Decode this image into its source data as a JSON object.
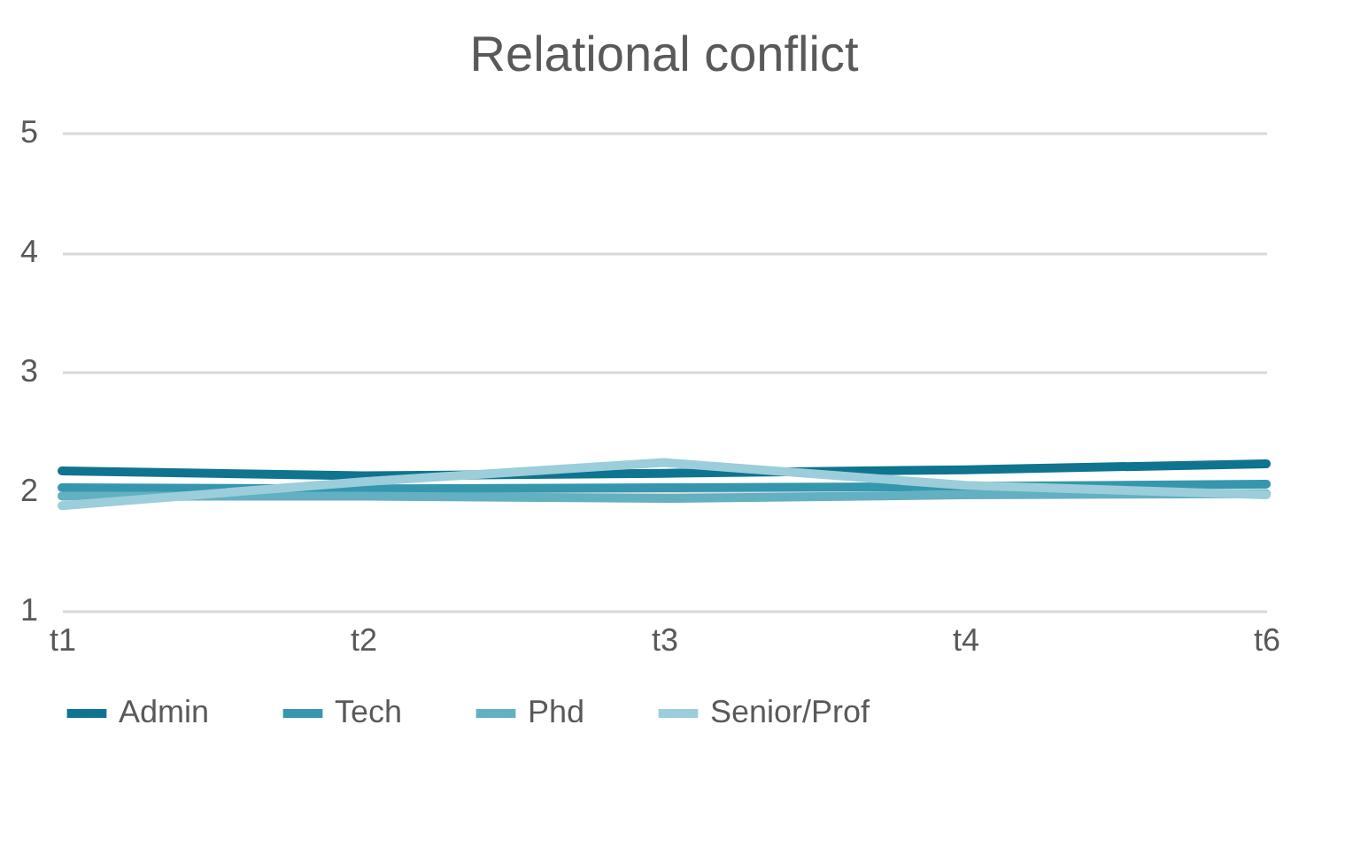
{
  "chart_data": {
    "type": "line",
    "title": "Relational conflict",
    "categories": [
      "t1",
      "t2",
      "t3",
      "t4",
      "t6"
    ],
    "series": [
      {
        "name": "Admin",
        "color": "#0e7490",
        "values": [
          2.17,
          2.13,
          2.15,
          2.18,
          2.23
        ]
      },
      {
        "name": "Tech",
        "color": "#3597ad",
        "values": [
          2.03,
          2.02,
          2.03,
          2.04,
          2.06
        ]
      },
      {
        "name": "Phd",
        "color": "#63b0c3",
        "values": [
          1.96,
          1.96,
          1.94,
          1.97,
          1.98
        ]
      },
      {
        "name": "Senior/Prof",
        "color": "#9ccdda",
        "values": [
          1.88,
          2.08,
          2.24,
          2.05,
          1.97
        ]
      }
    ],
    "ylim": [
      1,
      5
    ],
    "yticks": [
      1,
      2,
      3,
      4,
      5
    ],
    "grid": "y",
    "legend": "bottom",
    "marker": "none",
    "line_style": "solid"
  }
}
